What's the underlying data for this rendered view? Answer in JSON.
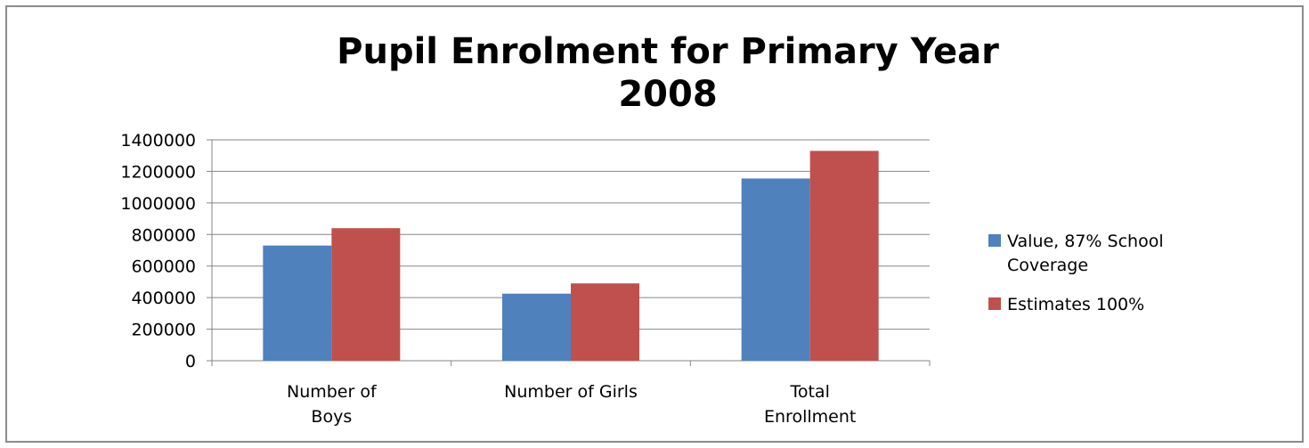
{
  "chart_data": {
    "type": "bar",
    "title_lines": [
      "Pupil Enrolment for Primary Year",
      "2008"
    ],
    "categories": [
      [
        "Number of",
        "Boys"
      ],
      [
        "Number of Girls"
      ],
      [
        "Total",
        "Enrollment"
      ]
    ],
    "series": [
      {
        "name_lines": [
          "Value, 87% School",
          "Coverage"
        ],
        "color": "#4f81bd",
        "values": [
          730000,
          425000,
          1155000
        ]
      },
      {
        "name_lines": [
          "Estimates 100%"
        ],
        "color": "#c0504d",
        "values": [
          840000,
          490000,
          1330000
        ]
      }
    ],
    "y_ticks": [
      "0",
      "200000",
      "400000",
      "600000",
      "800000",
      "1000000",
      "1200000",
      "1400000"
    ],
    "ylim": [
      0,
      1400000
    ],
    "grid": true,
    "legend_position": "right"
  }
}
